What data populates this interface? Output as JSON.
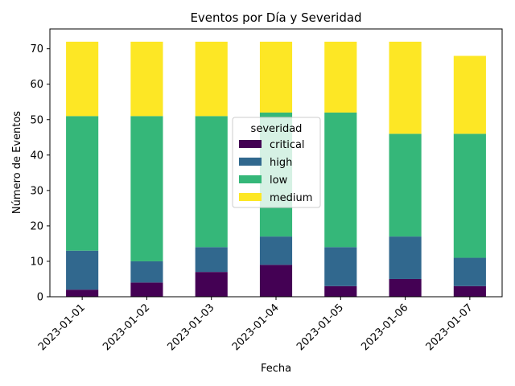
{
  "chart_data": {
    "type": "bar",
    "stacked": true,
    "title": "Eventos por Día y Severidad",
    "xlabel": "Fecha",
    "ylabel": "Número de Eventos",
    "categories": [
      "2023-01-01",
      "2023-01-02",
      "2023-01-03",
      "2023-01-04",
      "2023-01-05",
      "2023-01-06",
      "2023-01-07"
    ],
    "series": [
      {
        "name": "critical",
        "color": "#440154",
        "values": [
          2,
          4,
          7,
          9,
          3,
          5,
          3
        ]
      },
      {
        "name": "high",
        "color": "#31688e",
        "values": [
          11,
          6,
          7,
          8,
          11,
          12,
          8
        ]
      },
      {
        "name": "low",
        "color": "#35b779",
        "values": [
          38,
          41,
          37,
          35,
          38,
          29,
          35
        ]
      },
      {
        "name": "medium",
        "color": "#fde725",
        "values": [
          21,
          21,
          21,
          20,
          20,
          26,
          22
        ]
      }
    ],
    "ylim": [
      0,
      75.6
    ],
    "yticks": [
      0,
      10,
      20,
      30,
      40,
      50,
      60,
      70
    ],
    "grid": false,
    "legend": {
      "title": "severidad",
      "placement": "center"
    }
  }
}
